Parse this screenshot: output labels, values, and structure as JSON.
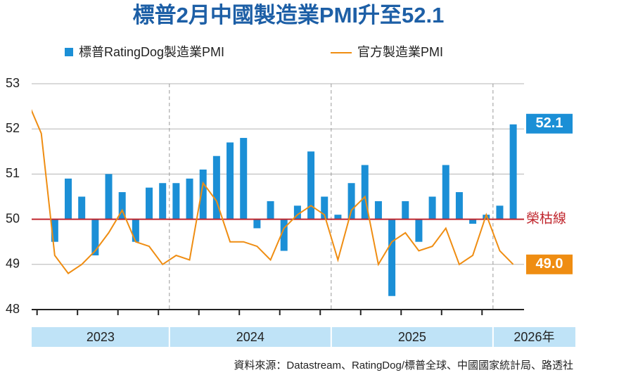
{
  "chart_data": {
    "type": "bar_line",
    "title": "標普2月中國製造業PMI升至52.1",
    "categories": [
      null,
      null,
      null,
      null,
      null,
      null,
      null,
      null,
      null,
      null,
      null,
      null,
      null,
      null,
      null,
      null,
      null,
      null,
      null,
      null,
      null,
      null,
      null,
      null,
      null,
      null,
      null,
      null,
      null,
      null,
      null,
      null,
      null,
      null,
      null,
      null,
      null
    ],
    "year_labels": [
      "2023",
      "2024",
      "2025",
      "2026年"
    ],
    "series": [
      {
        "name": "標普RatingDog製造業PMI",
        "type": "bar",
        "color": "#1b8fd6",
        "values": [
          null,
          50.0,
          49.5,
          50.9,
          50.5,
          49.2,
          51.0,
          50.6,
          49.5,
          50.7,
          50.8,
          50.8,
          50.9,
          51.1,
          51.4,
          51.7,
          51.8,
          49.8,
          50.4,
          49.3,
          50.3,
          51.5,
          50.5,
          50.1,
          50.8,
          51.2,
          50.4,
          48.3,
          50.4,
          49.5,
          50.5,
          51.2,
          50.6,
          49.9,
          50.1,
          50.3,
          52.1
        ]
      },
      {
        "name": "官方製造業PMI",
        "type": "line",
        "color": "#ef8d12",
        "values": [
          52.6,
          51.9,
          49.2,
          48.8,
          49.0,
          49.3,
          49.7,
          50.2,
          49.5,
          49.4,
          49.0,
          49.2,
          49.1,
          50.8,
          50.4,
          49.5,
          49.5,
          49.4,
          49.1,
          49.8,
          50.1,
          50.3,
          50.1,
          49.1,
          50.2,
          50.5,
          49.0,
          49.5,
          49.7,
          49.3,
          49.4,
          49.8,
          49.0,
          49.2,
          50.1,
          49.3,
          49.0
        ],
        "value_labels": [
          null,
          null,
          null,
          null,
          null,
          null,
          null,
          null,
          null,
          null,
          null,
          null,
          null,
          null,
          null,
          null,
          null,
          null,
          null,
          null,
          null,
          null,
          null,
          null,
          null,
          null,
          null,
          null,
          null,
          null,
          null,
          null,
          null,
          null,
          null,
          null,
          "49.0"
        ]
      }
    ],
    "reference_line": {
      "value": 50,
      "label": "榮枯線",
      "color": "#c0262d"
    },
    "ylim": [
      48,
      53
    ],
    "yticks": [
      48,
      49,
      50,
      51,
      52,
      53
    ],
    "grid": true,
    "source": "資料來源：Datastream、RatingDog/標普全球、中國國家統計局、路透社"
  }
}
